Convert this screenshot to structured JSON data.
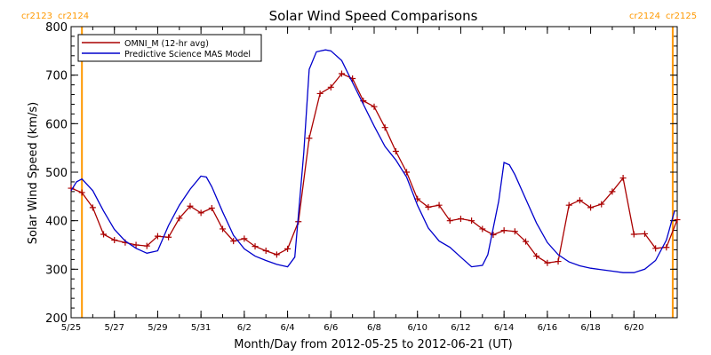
{
  "chart_data": {
    "type": "line",
    "title": "Solar Wind Speed Comparisons",
    "xlabel": "Month/Day from 2012-05-25 to 2012-06-21 (UT)",
    "ylabel": "Solar Wind Speed (km/s)",
    "xlim": [
      "2012-05-25",
      "2012-06-22"
    ],
    "ylim": [
      200,
      800
    ],
    "yticks": [
      200,
      300,
      400,
      500,
      600,
      700,
      800
    ],
    "xtick_dates": [
      "2012-05-25",
      "2012-05-27",
      "2012-05-29",
      "2012-05-31",
      "2012-06-02",
      "2012-06-04",
      "2012-06-06",
      "2012-06-08",
      "2012-06-10",
      "2012-06-12",
      "2012-06-14",
      "2012-06-16",
      "2012-06-18",
      "2012-06-20"
    ],
    "xtick_labels": [
      "5/25",
      "5/27",
      "5/29",
      "5/31",
      "6/2",
      "6/4",
      "6/6",
      "6/8",
      "6/10",
      "6/12",
      "6/14",
      "6/16",
      "6/18",
      "6/20"
    ],
    "grid": false,
    "legend_position": "top-left",
    "colors": {
      "omni": "#aa0000",
      "model": "#0000cc",
      "rotation_line": "#ff9900",
      "rotation_label": "#ff9900"
    },
    "carrington_markers": [
      {
        "date": "2012-05-25T12:00",
        "label_left": "cr2123",
        "label_right": "cr2124"
      },
      {
        "date": "2012-06-21T19:00",
        "label_left": "cr2124",
        "label_right": "cr2125"
      }
    ],
    "series": [
      {
        "name": "OMNI_M (12-hr avg)",
        "color": "#aa0000",
        "marker": "+",
        "points": [
          [
            "2012-05-25T00:00",
            467
          ],
          [
            "2012-05-25T12:00",
            458
          ],
          [
            "2012-05-26T00:00",
            427
          ],
          [
            "2012-05-26T12:00",
            372
          ],
          [
            "2012-05-27T00:00",
            360
          ],
          [
            "2012-05-27T12:00",
            355
          ],
          [
            "2012-05-28T00:00",
            350
          ],
          [
            "2012-05-28T12:00",
            348
          ],
          [
            "2012-05-29T00:00",
            368
          ],
          [
            "2012-05-29T12:00",
            366
          ],
          [
            "2012-05-30T00:00",
            405
          ],
          [
            "2012-05-30T12:00",
            430
          ],
          [
            "2012-05-31T00:00",
            416
          ],
          [
            "2012-05-31T12:00",
            426
          ],
          [
            "2012-06-01T00:00",
            383
          ],
          [
            "2012-06-01T12:00",
            358
          ],
          [
            "2012-06-02T00:00",
            363
          ],
          [
            "2012-06-02T12:00",
            347
          ],
          [
            "2012-06-03T00:00",
            338
          ],
          [
            "2012-06-03T12:00",
            330
          ],
          [
            "2012-06-04T00:00",
            342
          ],
          [
            "2012-06-04T12:00",
            398
          ],
          [
            "2012-06-05T00:00",
            570
          ],
          [
            "2012-06-05T12:00",
            662
          ],
          [
            "2012-06-06T00:00",
            675
          ],
          [
            "2012-06-06T12:00",
            703
          ],
          [
            "2012-06-07T00:00",
            693
          ],
          [
            "2012-06-07T12:00",
            647
          ],
          [
            "2012-06-08T00:00",
            635
          ],
          [
            "2012-06-08T12:00",
            592
          ],
          [
            "2012-06-09T00:00",
            543
          ],
          [
            "2012-06-09T12:00",
            500
          ],
          [
            "2012-06-10T00:00",
            445
          ],
          [
            "2012-06-10T12:00",
            428
          ],
          [
            "2012-06-11T00:00",
            432
          ],
          [
            "2012-06-11T12:00",
            400
          ],
          [
            "2012-06-12T00:00",
            404
          ],
          [
            "2012-06-12T12:00",
            400
          ],
          [
            "2012-06-13T00:00",
            383
          ],
          [
            "2012-06-13T12:00",
            371
          ],
          [
            "2012-06-14T00:00",
            380
          ],
          [
            "2012-06-14T12:00",
            378
          ],
          [
            "2012-06-15T00:00",
            357
          ],
          [
            "2012-06-15T12:00",
            327
          ],
          [
            "2012-06-16T00:00",
            313
          ],
          [
            "2012-06-16T12:00",
            316
          ],
          [
            "2012-06-17T00:00",
            432
          ],
          [
            "2012-06-17T12:00",
            442
          ],
          [
            "2012-06-18T00:00",
            427
          ],
          [
            "2012-06-18T12:00",
            434
          ],
          [
            "2012-06-19T00:00",
            460
          ],
          [
            "2012-06-19T12:00",
            488
          ],
          [
            "2012-06-20T00:00",
            372
          ],
          [
            "2012-06-20T12:00",
            373
          ],
          [
            "2012-06-21T00:00",
            343
          ],
          [
            "2012-06-21T12:00",
            345
          ],
          [
            "2012-06-22T00:00",
            402
          ]
        ]
      },
      {
        "name": "Predictive Science MAS Model",
        "color": "#0000cc",
        "marker": "none",
        "points": [
          [
            "2012-05-25T00:00",
            462
          ],
          [
            "2012-05-25T06:00",
            480
          ],
          [
            "2012-05-25T12:00",
            486
          ],
          [
            "2012-05-26T00:00",
            462
          ],
          [
            "2012-05-26T12:00",
            420
          ],
          [
            "2012-05-27T00:00",
            382
          ],
          [
            "2012-05-27T12:00",
            358
          ],
          [
            "2012-05-28T00:00",
            343
          ],
          [
            "2012-05-28T12:00",
            333
          ],
          [
            "2012-05-29T00:00",
            338
          ],
          [
            "2012-05-29T12:00",
            390
          ],
          [
            "2012-05-30T00:00",
            432
          ],
          [
            "2012-05-30T12:00",
            465
          ],
          [
            "2012-05-31T00:00",
            492
          ],
          [
            "2012-05-31T06:00",
            490
          ],
          [
            "2012-05-31T12:00",
            470
          ],
          [
            "2012-06-01T00:00",
            418
          ],
          [
            "2012-06-01T12:00",
            370
          ],
          [
            "2012-06-02T00:00",
            342
          ],
          [
            "2012-06-02T12:00",
            327
          ],
          [
            "2012-06-03T00:00",
            318
          ],
          [
            "2012-06-03T12:00",
            310
          ],
          [
            "2012-06-04T00:00",
            305
          ],
          [
            "2012-06-04T08:00",
            325
          ],
          [
            "2012-06-04T18:00",
            540
          ],
          [
            "2012-06-05T00:00",
            712
          ],
          [
            "2012-06-05T08:00",
            748
          ],
          [
            "2012-06-05T18:00",
            752
          ],
          [
            "2012-06-06T00:00",
            750
          ],
          [
            "2012-06-06T12:00",
            730
          ],
          [
            "2012-06-07T00:00",
            685
          ],
          [
            "2012-06-07T12:00",
            640
          ],
          [
            "2012-06-08T00:00",
            595
          ],
          [
            "2012-06-08T12:00",
            553
          ],
          [
            "2012-06-09T00:00",
            525
          ],
          [
            "2012-06-09T12:00",
            490
          ],
          [
            "2012-06-10T00:00",
            432
          ],
          [
            "2012-06-10T12:00",
            385
          ],
          [
            "2012-06-11T00:00",
            358
          ],
          [
            "2012-06-11T12:00",
            345
          ],
          [
            "2012-06-12T00:00",
            325
          ],
          [
            "2012-06-12T12:00",
            305
          ],
          [
            "2012-06-13T00:00",
            308
          ],
          [
            "2012-06-13T06:00",
            330
          ],
          [
            "2012-06-13T18:00",
            440
          ],
          [
            "2012-06-14T00:00",
            520
          ],
          [
            "2012-06-14T06:00",
            515
          ],
          [
            "2012-06-14T12:00",
            495
          ],
          [
            "2012-06-15T00:00",
            445
          ],
          [
            "2012-06-15T12:00",
            395
          ],
          [
            "2012-06-16T00:00",
            355
          ],
          [
            "2012-06-16T12:00",
            330
          ],
          [
            "2012-06-17T00:00",
            315
          ],
          [
            "2012-06-17T12:00",
            307
          ],
          [
            "2012-06-18T00:00",
            302
          ],
          [
            "2012-06-18T12:00",
            299
          ],
          [
            "2012-06-19T00:00",
            296
          ],
          [
            "2012-06-19T12:00",
            293
          ],
          [
            "2012-06-20T00:00",
            293
          ],
          [
            "2012-06-20T12:00",
            300
          ],
          [
            "2012-06-21T00:00",
            318
          ],
          [
            "2012-06-21T12:00",
            360
          ],
          [
            "2012-06-21T21:00",
            420
          ]
        ]
      }
    ]
  }
}
